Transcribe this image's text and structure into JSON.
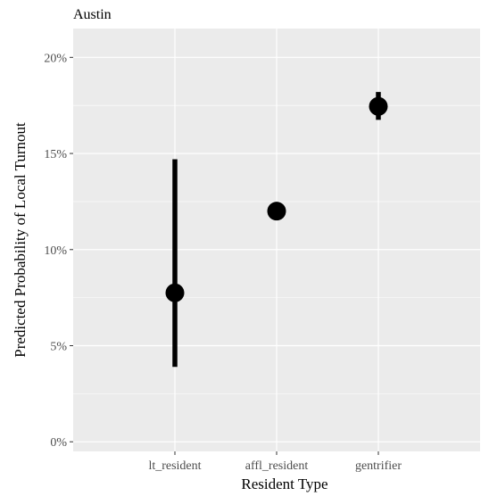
{
  "chart_data": {
    "type": "pointrange",
    "title": "Austin",
    "xlabel": "Resident Type",
    "ylabel": "Predicted Probability of Local Turnout",
    "categories": [
      "lt_resident",
      "affl_resident",
      "gentrifier"
    ],
    "estimates": [
      7.75,
      12.0,
      17.45
    ],
    "lower": [
      3.9,
      12.0,
      16.75
    ],
    "upper": [
      14.7,
      12.0,
      18.2
    ],
    "ylim": [
      -0.5,
      21.5
    ],
    "yticks": [
      0,
      5,
      10,
      15,
      20
    ],
    "ytick_labels": [
      "0%",
      "5%",
      "10%",
      "15%",
      "20%"
    ],
    "grid": true,
    "panel_color": "#ebebeb",
    "grid_color": "#ffffff",
    "point_color": "#000000"
  }
}
